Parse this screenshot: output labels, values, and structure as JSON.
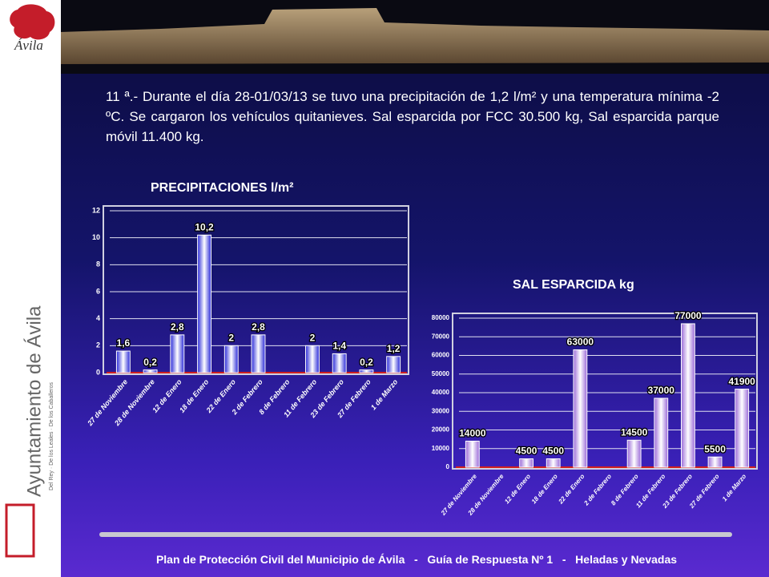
{
  "sidebar": {
    "logo_text": "Ávila",
    "vertical_title": "Ayuntamiento de Ávila",
    "motto": "Del Rey · De los Leales · De los Caballeros"
  },
  "text": "11 ª.- Durante el día 28-01/03/13 se tuvo una precipitación de 1,2  l/m² y una temperatura mínima -2 ºC. Se cargaron los vehículos quitanieves. Sal esparcida por FCC 30.500 kg, Sal esparcida parque móvil 11.400 kg.",
  "footer": "Plan de Protección Civil del Municipio de Ávila   -   Guía de Respuesta Nº 1   -   Heladas y Nevadas",
  "chart_data": [
    {
      "type": "bar",
      "title": "PRECIPITACIONES l/m²",
      "categories": [
        "27 de Noviembre",
        "28 de Noviembre",
        "12 de Enero",
        "18 de Enero",
        "22 de Enero",
        "2 de Febrero",
        "8 de Febrero",
        "11 de Febrero",
        "23 de Febrero",
        "27 de Febrero",
        "1 de Marzo"
      ],
      "values": [
        1.6,
        0.2,
        2.8,
        10.2,
        2,
        2.8,
        null,
        2,
        1.4,
        0.2,
        1.2
      ],
      "value_labels": [
        "1,6",
        "0,2",
        "2,8",
        "10,2",
        "2",
        "2,8",
        null,
        "2",
        "1,4",
        "0,2",
        "1,2"
      ],
      "color": "#2a2ad8",
      "ylim": [
        0,
        12
      ],
      "yticks": [
        0,
        2,
        4,
        6,
        8,
        10,
        12
      ],
      "grid": true
    },
    {
      "type": "bar",
      "title": "SAL ESPARCIDA kg",
      "categories": [
        "27 de Noviembre",
        "28 de Noviembre",
        "12 de Enero",
        "18 de Enero",
        "22 de Enero",
        "2 de Febrero",
        "8 de Febrero",
        "11 de Febrero",
        "23 de Febrero",
        "27 de Febrero",
        "1 de Marzo"
      ],
      "values": [
        14000,
        null,
        4500,
        4500,
        63000,
        null,
        14500,
        37000,
        77000,
        5500,
        41900
      ],
      "color": "#9a6ad8",
      "ylim": [
        0,
        80000
      ],
      "yticks": [
        0,
        10000,
        20000,
        30000,
        40000,
        50000,
        60000,
        70000,
        80000
      ],
      "grid": true
    }
  ]
}
